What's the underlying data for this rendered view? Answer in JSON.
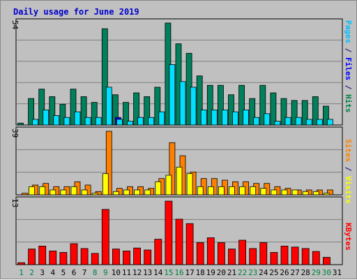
{
  "title": "Daily usage for June 2019",
  "chart_data": [
    {
      "type": "bar",
      "panel": "pages-files-hits",
      "ymax_label": "54",
      "ylim": [
        0,
        54
      ],
      "categories": [
        "1",
        "2",
        "3",
        "4",
        "5",
        "6",
        "7",
        "8",
        "9",
        "10",
        "11",
        "12",
        "13",
        "14",
        "15",
        "16",
        "17",
        "18",
        "19",
        "20",
        "21",
        "22",
        "23",
        "24",
        "25",
        "26",
        "27",
        "28",
        "29",
        "30",
        "31"
      ],
      "side_label": [
        {
          "text": "Pages",
          "color": "#00c0ff"
        },
        {
          "text": " / ",
          "color": "#000080"
        },
        {
          "text": "Files",
          "color": "#0000ff"
        },
        {
          "text": " / ",
          "color": "#000080"
        },
        {
          "text": "Hits",
          "color": "#008040"
        }
      ],
      "series": [
        {
          "color": "#00805c",
          "values": [
            1,
            14,
            19,
            15,
            11,
            19,
            15,
            12,
            51,
            16,
            12,
            17,
            15,
            20,
            54,
            43,
            38,
            26,
            21,
            21,
            16,
            21,
            14,
            21,
            17,
            14,
            13,
            13,
            15,
            10,
            0
          ]
        },
        {
          "color": "#0000ff",
          "values": [
            0,
            0,
            0,
            0,
            0,
            0,
            0,
            0,
            0,
            4,
            0,
            0,
            0,
            0,
            0,
            0,
            0,
            0,
            0,
            0,
            0,
            0,
            0,
            0,
            0,
            0,
            0,
            0,
            0,
            0,
            0
          ]
        },
        {
          "color": "#00e0ff",
          "values": [
            0,
            3,
            8,
            5,
            4,
            7,
            4,
            4,
            20,
            3,
            2,
            4,
            4,
            7,
            32,
            23,
            20,
            8,
            8,
            8,
            7,
            8,
            4,
            6,
            2,
            4,
            4,
            3,
            3,
            3,
            0
          ]
        }
      ]
    },
    {
      "type": "bar",
      "panel": "sites-visits",
      "ymax_label": "39",
      "ylim": [
        0,
        39
      ],
      "categories": [
        "1",
        "2",
        "3",
        "4",
        "5",
        "6",
        "7",
        "8",
        "9",
        "10",
        "11",
        "12",
        "13",
        "14",
        "15",
        "16",
        "17",
        "18",
        "19",
        "20",
        "21",
        "22",
        "23",
        "24",
        "25",
        "26",
        "27",
        "28",
        "29",
        "30",
        "31"
      ],
      "side_label": [
        {
          "text": "Sites",
          "color": "#ff8000"
        },
        {
          "text": " / ",
          "color": "#000080"
        },
        {
          "text": "Visits",
          "color": "#ffff00"
        }
      ],
      "series": [
        {
          "color": "#ff8000",
          "values": [
            1,
            6,
            7,
            5,
            5,
            8,
            6,
            2,
            39,
            4,
            5,
            5,
            4,
            10,
            32,
            24,
            14,
            10,
            10,
            9,
            8,
            8,
            7,
            7,
            5,
            4,
            3,
            3,
            3,
            3,
            0
          ]
        },
        {
          "color": "#ffff00",
          "values": [
            0,
            5,
            5,
            3,
            3,
            5,
            3,
            1,
            13,
            2,
            3,
            3,
            3,
            8,
            12,
            17,
            13,
            5,
            5,
            5,
            5,
            5,
            5,
            4,
            3,
            3,
            3,
            2,
            2,
            1,
            0
          ]
        }
      ]
    },
    {
      "type": "bar",
      "panel": "kbytes",
      "ymax_label": "13",
      "ylim": [
        0,
        13
      ],
      "categories": [
        "1",
        "2",
        "3",
        "4",
        "5",
        "6",
        "7",
        "8",
        "9",
        "10",
        "11",
        "12",
        "13",
        "14",
        "15",
        "16",
        "17",
        "18",
        "19",
        "20",
        "21",
        "22",
        "23",
        "24",
        "25",
        "26",
        "27",
        "28",
        "29",
        "30",
        "31"
      ],
      "side_label": [
        {
          "text": "KBytes",
          "color": "#ff0000"
        }
      ],
      "series": [
        {
          "color": "#ff0000",
          "values": [
            0.4,
            3.2,
            3.8,
            2.8,
            2.5,
            4.3,
            3.3,
            2.3,
            11.3,
            3.2,
            2.8,
            3.4,
            3.0,
            5.2,
            13.0,
            9.3,
            8.4,
            4.5,
            5.5,
            4.5,
            3.2,
            5.0,
            3.3,
            4.5,
            2.5,
            3.8,
            3.6,
            3.3,
            2.7,
            1.5,
            0
          ]
        }
      ]
    }
  ],
  "x_labels": [
    {
      "text": "1",
      "color": "#008040"
    },
    {
      "text": "2",
      "color": "#008040"
    },
    {
      "text": "3",
      "color": "#000000"
    },
    {
      "text": "4",
      "color": "#000000"
    },
    {
      "text": "5",
      "color": "#000000"
    },
    {
      "text": "6",
      "color": "#000000"
    },
    {
      "text": "7",
      "color": "#000000"
    },
    {
      "text": "8",
      "color": "#008040"
    },
    {
      "text": "9",
      "color": "#008040"
    },
    {
      "text": "10",
      "color": "#000000"
    },
    {
      "text": "11",
      "color": "#000000"
    },
    {
      "text": "12",
      "color": "#000000"
    },
    {
      "text": "13",
      "color": "#000000"
    },
    {
      "text": "14",
      "color": "#000000"
    },
    {
      "text": "15",
      "color": "#008040"
    },
    {
      "text": "16",
      "color": "#008040"
    },
    {
      "text": "17",
      "color": "#000000"
    },
    {
      "text": "18",
      "color": "#000000"
    },
    {
      "text": "19",
      "color": "#000000"
    },
    {
      "text": "20",
      "color": "#000000"
    },
    {
      "text": "21",
      "color": "#000000"
    },
    {
      "text": "22",
      "color": "#008040"
    },
    {
      "text": "23",
      "color": "#008040"
    },
    {
      "text": "24",
      "color": "#000000"
    },
    {
      "text": "25",
      "color": "#000000"
    },
    {
      "text": "26",
      "color": "#000000"
    },
    {
      "text": "27",
      "color": "#000000"
    },
    {
      "text": "28",
      "color": "#000000"
    },
    {
      "text": "29",
      "color": "#008040"
    },
    {
      "text": "30",
      "color": "#008040"
    },
    {
      "text": "31",
      "color": "#000000"
    }
  ],
  "colors": {
    "background": "#c0c0c0",
    "plot_border": "#000000",
    "grid": "#808080"
  }
}
